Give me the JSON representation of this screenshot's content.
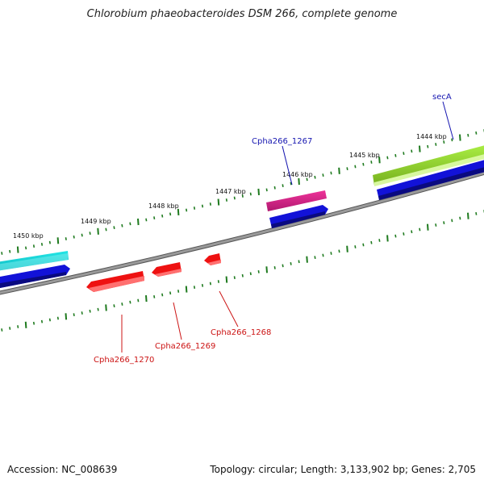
{
  "title": "Chlorobium phaeobacteroides DSM 266, complete genome",
  "footer": {
    "accession": "Accession: NC_008639",
    "summary": "Topology: circular; Length: 3,133,902 bp; Genes: 2,705"
  },
  "colors": {
    "backbone": "#8a8a8a",
    "tick": "#1e7a1e",
    "forward_label": "#1515b0",
    "reverse_label": "#cc1414",
    "cds_blue": "#1212d8",
    "gene_cyan": "#22e6e6",
    "gene_pink": "#ee3399",
    "gene_lime": "#99dd33",
    "gene_red": "#ee1111"
  },
  "scale": {
    "unit": "kbp",
    "labels": [
      {
        "kbp": 1450,
        "text": "1450 kbp"
      },
      {
        "kbp": 1449,
        "text": "1449 kbp"
      },
      {
        "kbp": 1448,
        "text": "1448 kbp"
      },
      {
        "kbp": 1447,
        "text": "1447 kbp"
      },
      {
        "kbp": 1446,
        "text": "1446 kbp"
      },
      {
        "kbp": 1445,
        "text": "1445 kbp"
      },
      {
        "kbp": 1444,
        "text": "1444 kbp"
      }
    ]
  },
  "genes": [
    {
      "label": "secA",
      "strand": "forward"
    },
    {
      "label": "Cpha266_1267",
      "strand": "forward"
    },
    {
      "label": "Cpha266_1268",
      "strand": "reverse"
    },
    {
      "label": "Cpha266_1269",
      "strand": "reverse"
    },
    {
      "label": "Cpha266_1270",
      "strand": "reverse"
    }
  ]
}
